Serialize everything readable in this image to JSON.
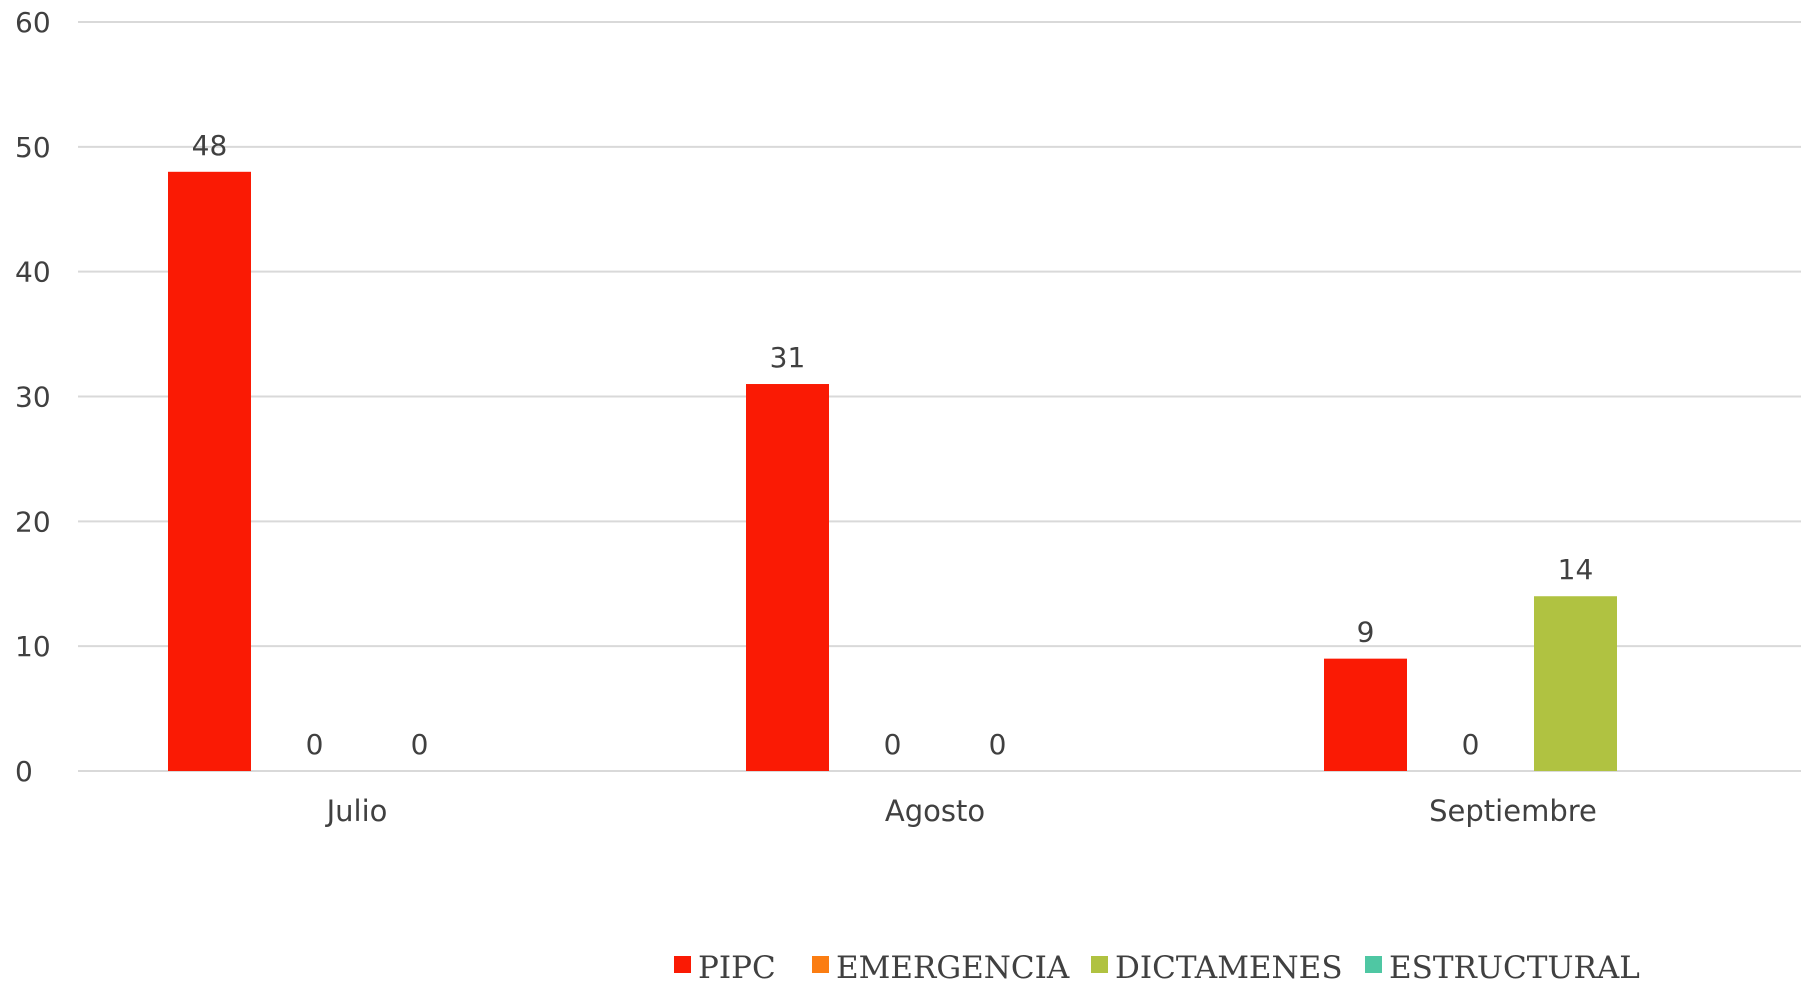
{
  "chart_data": {
    "type": "bar",
    "title": "",
    "xlabel": "",
    "ylabel": "",
    "categories": [
      "Julio",
      "Agosto",
      "Septiembre"
    ],
    "ylim": [
      0,
      60
    ],
    "yticks": [
      0,
      10,
      20,
      30,
      40,
      50,
      60
    ],
    "grid": true,
    "legend_position": "bottom",
    "series": [
      {
        "name": "PIPC",
        "color": "#fa1a04",
        "values": [
          48,
          31,
          9
        ]
      },
      {
        "name": "EMERGENCIA",
        "color": "#fb7d12",
        "values": [
          0,
          0,
          0
        ]
      },
      {
        "name": "DICTAMENES",
        "color": "#b0c241",
        "values": [
          0,
          0,
          14
        ]
      },
      {
        "name": "ESTRUCTURAL",
        "color": "#4fc7a3",
        "values": [
          null,
          null,
          null
        ]
      }
    ],
    "data_labels": [
      [
        "48",
        "31",
        "9"
      ],
      [
        "0",
        "0",
        "0"
      ],
      [
        "0",
        "0",
        "14"
      ],
      [
        "",
        "",
        ""
      ]
    ]
  }
}
